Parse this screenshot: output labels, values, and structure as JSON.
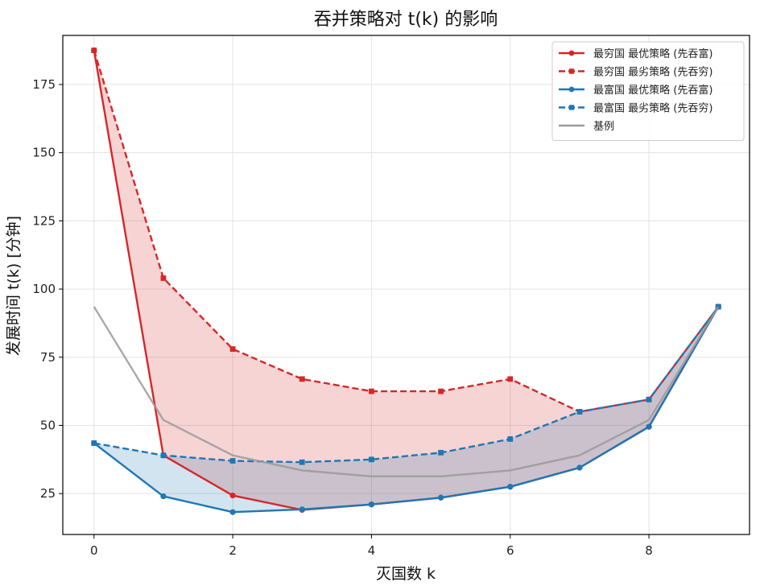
{
  "chart_data": {
    "type": "line",
    "title": "吞并策略对 t(k) 的影响",
    "xlabel": "灭国数 k",
    "ylabel": "发展时间 t(k) [分钟]",
    "xlim": [
      -0.45,
      9.45
    ],
    "ylim": [
      10,
      193
    ],
    "xticks": [
      0,
      2,
      4,
      6,
      8
    ],
    "yticks": [
      25,
      50,
      75,
      100,
      125,
      150,
      175
    ],
    "grid": true,
    "legend_position": "top-right",
    "x": [
      0,
      1,
      2,
      3,
      4,
      5,
      6,
      7,
      8,
      9
    ],
    "series": [
      {
        "name": "最穷国 最优策略 (先吞富)",
        "color": "#d62728",
        "dash": false,
        "marker": "circle",
        "values": [
          187.5,
          39,
          24.3,
          19,
          21,
          23.5,
          27.5,
          34.5,
          49.5,
          93.5
        ]
      },
      {
        "name": "最穷国 最劣策略 (先吞穷)",
        "color": "#d62728",
        "dash": true,
        "marker": "square",
        "values": [
          187.5,
          104,
          78,
          67,
          62.5,
          62.5,
          67,
          55,
          59.5,
          93.5
        ]
      },
      {
        "name": "最富国 最优策略 (先吞富)",
        "color": "#1f77b4",
        "dash": false,
        "marker": "circle",
        "values": [
          43.5,
          24,
          18.2,
          19.2,
          21,
          23.5,
          27.5,
          34.5,
          49.5,
          93.5
        ]
      },
      {
        "name": "最富国 最劣策略 (先吞穷)",
        "color": "#1f77b4",
        "dash": true,
        "marker": "square",
        "values": [
          43.5,
          39,
          37,
          36.5,
          37.5,
          40,
          45,
          55,
          59.5,
          93.5
        ]
      },
      {
        "name": "基例",
        "color": "#999999",
        "dash": false,
        "marker": "none",
        "values": [
          93.5,
          52,
          39,
          33.5,
          31.3,
          31.3,
          33.5,
          39,
          52,
          93.5
        ]
      }
    ],
    "fills": [
      {
        "between": [
          0,
          1
        ],
        "color": "#d62728",
        "opacity": 0.2
      },
      {
        "between": [
          2,
          3
        ],
        "color": "#1f77b4",
        "opacity": 0.2
      }
    ]
  }
}
